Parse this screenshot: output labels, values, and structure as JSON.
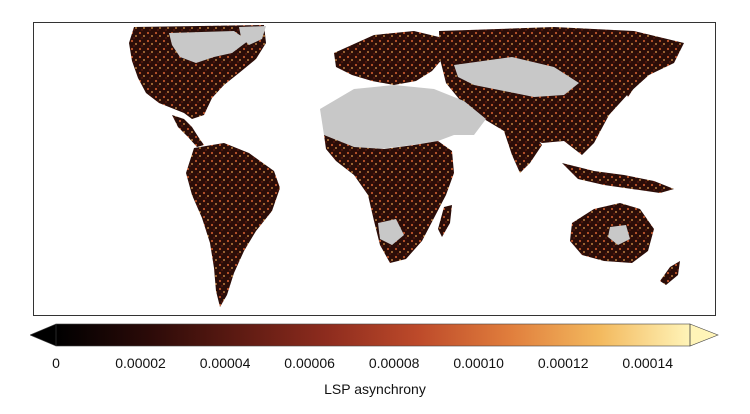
{
  "colorbar": {
    "title": "LSP asynchrony",
    "min": 0,
    "max": 0.00015,
    "extend": "both",
    "ticks": [
      {
        "value": 0,
        "label": "0"
      },
      {
        "value": 2e-05,
        "label": "0.00002"
      },
      {
        "value": 4e-05,
        "label": "0.00004"
      },
      {
        "value": 6e-05,
        "label": "0.00006"
      },
      {
        "value": 8e-05,
        "label": "0.00008"
      },
      {
        "value": 0.0001,
        "label": "0.00010"
      },
      {
        "value": 0.00012,
        "label": "0.00012"
      },
      {
        "value": 0.00014,
        "label": "0.00014"
      }
    ],
    "colors": [
      "#000000",
      "#2a0a08",
      "#5c1a12",
      "#8e2c1e",
      "#bd4a2a",
      "#e07d3c",
      "#f3b95e",
      "#fff4b8"
    ]
  },
  "map": {
    "ocean_color": "#ffffff",
    "no_data_color": "#c8c8c8",
    "land_low_color": "#2b0d08"
  }
}
